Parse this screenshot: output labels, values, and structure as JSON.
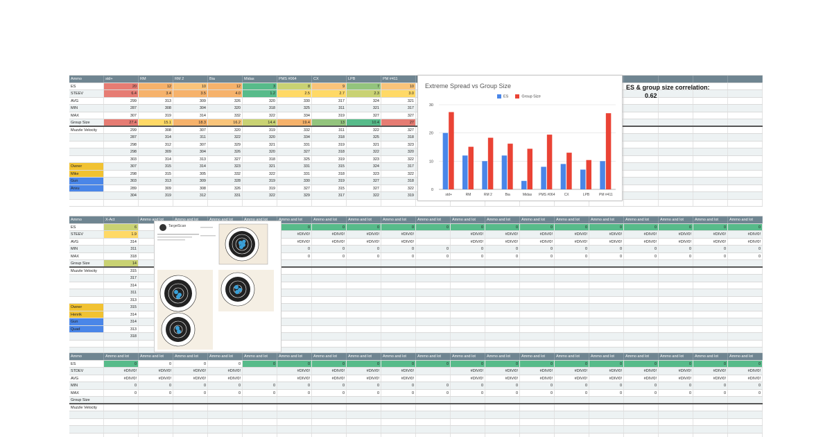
{
  "correlation": {
    "title": "ES & group size correlation:",
    "value": "0.62"
  },
  "colors": {
    "header": "#6f8591",
    "orange": "#f6b26b",
    "yellow": "#ffd966",
    "green": "#57bb8a",
    "red": "#e67c73",
    "blue_label": "#4a86e8",
    "gold_label": "#f1c232"
  },
  "block1": {
    "header": [
      "Ammo",
      "std+",
      "RM",
      "RM 2",
      "Bia",
      "Midas",
      "PMS #064",
      "CX",
      "LPB",
      "PM #411"
    ],
    "rows": [
      {
        "label": "ES",
        "values": [
          "20",
          "12",
          "10",
          "12",
          "3",
          "8",
          "9",
          "7",
          "10"
        ],
        "colors": [
          "#e67c73",
          "#f6b26b",
          "#f9c47a",
          "#f6b26b",
          "#57bb8a",
          "#c9d273",
          "#f9c47a",
          "#93c47d",
          "#f9c47a"
        ]
      },
      {
        "label": "STEEV",
        "values": [
          "6.4",
          "3.4",
          "3.5",
          "4.0",
          "1.2",
          "2.5",
          "2.7",
          "2.3",
          "3.0"
        ],
        "colors": [
          "#e67c73",
          "#f6b26b",
          "#f6b26b",
          "#f6b26b",
          "#57bb8a",
          "#ffd966",
          "#ffd966",
          "#c9d273",
          "#ffd966"
        ]
      },
      {
        "label": "AVG",
        "values": [
          "299",
          "313",
          "309",
          "326",
          "320",
          "330",
          "317",
          "324",
          "321"
        ]
      },
      {
        "label": "MIN",
        "values": [
          "287",
          "308",
          "304",
          "320",
          "318",
          "325",
          "311",
          "321",
          "317"
        ]
      },
      {
        "label": "MAX",
        "values": [
          "307",
          "319",
          "314",
          "332",
          "322",
          "334",
          "319",
          "327",
          "327"
        ]
      },
      {
        "label": "Group Size",
        "values": [
          "27.4",
          "15.1",
          "18.3",
          "16.2",
          "14.4",
          "19.4",
          "13",
          "10.4",
          "27"
        ],
        "colors": [
          "#e67c73",
          "#ffd966",
          "#f6b26b",
          "#f9c47a",
          "#c9d273",
          "#f6b26b",
          "#93c47d",
          "#57bb8a",
          "#e67c73"
        ],
        "thick": true
      },
      {
        "label": "Muzzle Velocity",
        "values": [
          "299",
          "308",
          "307",
          "320",
          "319",
          "332",
          "311",
          "322",
          "327"
        ]
      },
      {
        "label": "",
        "values": [
          "287",
          "314",
          "311",
          "322",
          "320",
          "334",
          "318",
          "325",
          "318"
        ]
      },
      {
        "label": "",
        "values": [
          "298",
          "312",
          "307",
          "329",
          "321",
          "331",
          "319",
          "321",
          "323"
        ]
      },
      {
        "label": "",
        "values": [
          "298",
          "309",
          "304",
          "326",
          "320",
          "327",
          "318",
          "322",
          "320"
        ]
      },
      {
        "label": "",
        "values": [
          "303",
          "314",
          "313",
          "327",
          "318",
          "325",
          "319",
          "323",
          "322"
        ]
      },
      {
        "label": "Owner",
        "labelColor": "#f1c232",
        "values": [
          "307",
          "315",
          "314",
          "323",
          "321",
          "331",
          "315",
          "324",
          "317"
        ]
      },
      {
        "label": "Mike",
        "labelColor": "#f1c232",
        "values": [
          "298",
          "315",
          "305",
          "332",
          "322",
          "331",
          "318",
          "323",
          "322"
        ]
      },
      {
        "label": "Gun",
        "labelColor": "#4a86e8",
        "values": [
          "303",
          "313",
          "309",
          "328",
          "319",
          "330",
          "319",
          "327",
          "318"
        ]
      },
      {
        "label": "Anxu",
        "labelColor": "#4a86e8",
        "values": [
          "289",
          "309",
          "308",
          "326",
          "319",
          "327",
          "315",
          "327",
          "322"
        ]
      },
      {
        "label": "",
        "values": [
          "304",
          "319",
          "312",
          "331",
          "322",
          "329",
          "317",
          "322",
          "319"
        ]
      },
      {
        "label": "",
        "values": []
      }
    ]
  },
  "block2": {
    "header": [
      "Ammo",
      "X-Act",
      "Ammo and lot",
      "Ammo and lot",
      "Ammo and lot",
      "Ammo and lot",
      "Ammo and lot",
      "Ammo and lot",
      "Ammo and lot",
      "Ammo and lot",
      "Ammo and lot",
      "Ammo and lot",
      "Ammo and lot",
      "Ammo and lot",
      "Ammo and lot",
      "Ammo and lot",
      "Ammo and lot",
      "Ammo and lot",
      "Ammo and lot",
      "Ammo and lot"
    ],
    "rows": [
      {
        "label": "ES",
        "values": [
          "6",
          "",
          "",
          "",
          "",
          "0",
          "0",
          "0",
          "0",
          "0",
          "0",
          "0",
          "0",
          "0",
          "0",
          "0",
          "0",
          "0",
          "0"
        ],
        "first": "#c9d273",
        "fill": "#57bb8a"
      },
      {
        "label": "STEEV",
        "values": [
          "1.9",
          "",
          "",
          "",
          "",
          "#DIV/0!",
          "#DIV/0!",
          "#DIV/0!",
          "#DIV/0!",
          "",
          "#DIV/0!",
          "#DIV/0!",
          "#DIV/0!",
          "#DIV/0!",
          "#DIV/0!",
          "#DIV/0!",
          "#DIV/0!",
          "#DIV/0!",
          "#DIV/0!"
        ],
        "first": "#ffd966"
      },
      {
        "label": "AVG",
        "values": [
          "314",
          "",
          "",
          "",
          "",
          "#DIV/0!",
          "#DIV/0!",
          "#DIV/0!",
          "#DIV/0!",
          "",
          "#DIV/0!",
          "#DIV/0!",
          "#DIV/0!",
          "#DIV/0!",
          "#DIV/0!",
          "#DIV/0!",
          "#DIV/0!",
          "#DIV/0!",
          "#DIV/0!"
        ]
      },
      {
        "label": "MIN",
        "values": [
          "311",
          "",
          "",
          "",
          "",
          "0",
          "0",
          "0",
          "0",
          "0",
          "0",
          "0",
          "0",
          "0",
          "0",
          "0",
          "0",
          "0",
          "0"
        ]
      },
      {
        "label": "MAX",
        "values": [
          "318",
          "",
          "",
          "",
          "",
          "0",
          "0",
          "0",
          "0",
          "0",
          "0",
          "0",
          "0",
          "0",
          "0",
          "0",
          "0",
          "0",
          "0"
        ]
      },
      {
        "label": "Group Size",
        "values": [
          "14"
        ],
        "first": "#c9d273",
        "thick": true
      },
      {
        "label": "Muzzle Velocity",
        "values": [
          "315"
        ]
      },
      {
        "label": "",
        "values": [
          "317"
        ]
      },
      {
        "label": "",
        "values": [
          "314"
        ]
      },
      {
        "label": "",
        "values": [
          "311"
        ]
      },
      {
        "label": "",
        "values": [
          "313"
        ]
      },
      {
        "label": "Owner",
        "labelColor": "#f1c232",
        "values": [
          "315"
        ]
      },
      {
        "label": "Henrik",
        "labelColor": "#f1c232",
        "values": [
          "314"
        ]
      },
      {
        "label": "Gun",
        "labelColor": "#4a86e8",
        "values": [
          "314"
        ]
      },
      {
        "label": "Quad",
        "labelColor": "#4a86e8",
        "values": [
          "313"
        ]
      },
      {
        "label": "",
        "values": [
          "318"
        ]
      },
      {
        "label": "",
        "values": []
      },
      {
        "label": "",
        "values": []
      }
    ]
  },
  "block3": {
    "header": [
      "Ammo",
      "Ammo and lot",
      "Ammo and lot",
      "Ammo and lot",
      "Ammo and lot",
      "Ammo and lot",
      "Ammo and lot",
      "Ammo and lot",
      "Ammo and lot",
      "Ammo and lot",
      "Ammo and lot",
      "Ammo and lot",
      "Ammo and lot",
      "Ammo and lot",
      "Ammo and lot",
      "Ammo and lot",
      "Ammo and lot",
      "Ammo and lot",
      "Ammo and lot",
      "Ammo and lot"
    ],
    "rows": [
      {
        "label": "ES",
        "values": [
          "0",
          "0",
          "0",
          "0",
          "0",
          "0",
          "0",
          "0",
          "0",
          "0",
          "0",
          "0",
          "0",
          "0",
          "0",
          "0",
          "0",
          "0",
          "0"
        ],
        "fill": "#57bb8a",
        "first": "#57bb8a"
      },
      {
        "label": "STDEV",
        "values": [
          "#DIV/0!",
          "#DIV/0!",
          "#DIV/0!",
          "#DIV/0!",
          "",
          "#DIV/0!",
          "#DIV/0!",
          "#DIV/0!",
          "#DIV/0!",
          "",
          "#DIV/0!",
          "#DIV/0!",
          "#DIV/0!",
          "#DIV/0!",
          "#DIV/0!",
          "#DIV/0!",
          "#DIV/0!",
          "#DIV/0!",
          "#DIV/0!"
        ]
      },
      {
        "label": "AVG",
        "values": [
          "#DIV/0!",
          "#DIV/0!",
          "#DIV/0!",
          "#DIV/0!",
          "",
          "#DIV/0!",
          "#DIV/0!",
          "#DIV/0!",
          "#DIV/0!",
          "",
          "#DIV/0!",
          "#DIV/0!",
          "#DIV/0!",
          "#DIV/0!",
          "#DIV/0!",
          "#DIV/0!",
          "#DIV/0!",
          "#DIV/0!",
          "#DIV/0!"
        ]
      },
      {
        "label": "MIN",
        "values": [
          "0",
          "0",
          "0",
          "0",
          "0",
          "0",
          "0",
          "0",
          "0",
          "0",
          "0",
          "0",
          "0",
          "0",
          "0",
          "0",
          "0",
          "0",
          "0"
        ]
      },
      {
        "label": "MAX",
        "values": [
          "0",
          "0",
          "0",
          "0",
          "0",
          "0",
          "0",
          "0",
          "0",
          "0",
          "0",
          "0",
          "0",
          "0",
          "0",
          "0",
          "0",
          "0",
          "0"
        ]
      },
      {
        "label": "Group Size",
        "values": [],
        "thick": true
      },
      {
        "label": "Muzzle Velocity",
        "values": []
      },
      {
        "label": "",
        "values": []
      },
      {
        "label": "",
        "values": []
      },
      {
        "label": "",
        "values": []
      },
      {
        "label": "",
        "values": []
      }
    ]
  },
  "chart_data": {
    "type": "bar",
    "title": "Extreme Spread vs Group Size",
    "categories": [
      "std+",
      "RM",
      "RM 2",
      "Bia",
      "Midas",
      "PMS #064",
      "CX",
      "LPB",
      "PM #411"
    ],
    "series": [
      {
        "name": "ES",
        "color": "#4a86e8",
        "values": [
          20,
          12,
          10,
          12,
          3,
          8,
          9,
          7,
          10
        ]
      },
      {
        "name": "Group Size",
        "color": "#ea4335",
        "values": [
          27.4,
          15.1,
          18.3,
          16.2,
          14.4,
          19.4,
          13,
          10.4,
          27
        ]
      }
    ],
    "yticks": [
      "0",
      "10",
      "20",
      "30"
    ],
    "ylim": [
      0,
      30
    ],
    "legend": "top"
  }
}
